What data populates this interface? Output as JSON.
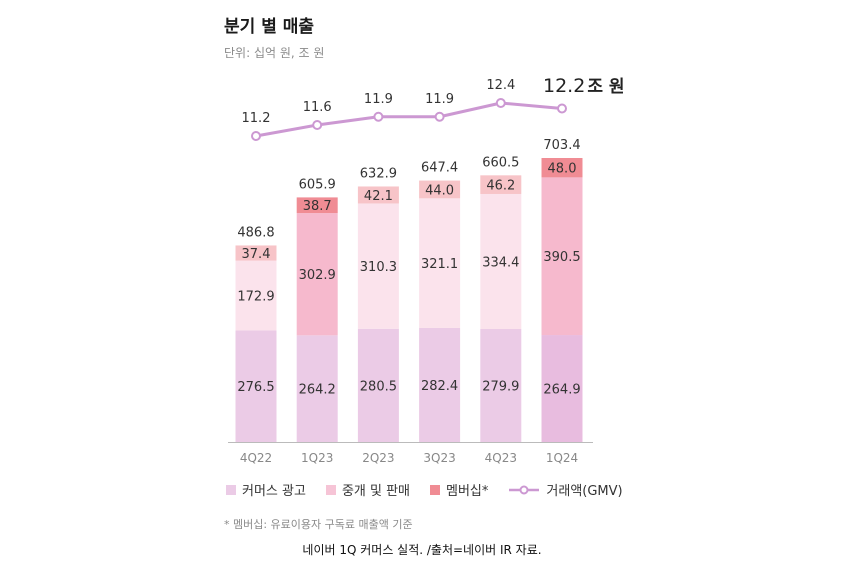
{
  "title": "분기 별 매출",
  "unit": "단위: 십억 원, 조 원",
  "gmv_highlight": {
    "value": "12.2",
    "unit": "조 원"
  },
  "legend": {
    "commerce_ad": "커머스 광고",
    "brokerage": "중개 및 판매",
    "membership": "멤버십*",
    "gmv": "거래액(GMV)"
  },
  "footnote": "* 멤버십: 유료이용자 구독료 매출액 기준",
  "caption": "네이버 1Q 커머스 실적. /출처=네이버 IR 자료.",
  "colors": {
    "commerce_ad": "#ebcbe6",
    "commerce_ad_last": "#e8bcdf",
    "brokerage": "#fbe3ec",
    "brokerage_highlight": "#f6b9cd",
    "membership": "#f7c4c8",
    "membership_highlight": "#f08c94",
    "gmv_line": "#cc98d2",
    "axis": "#bbbbbb"
  },
  "chart_data": {
    "type": "bar",
    "stacked": true,
    "categories": [
      "4Q22",
      "1Q23",
      "2Q23",
      "3Q23",
      "4Q23",
      "1Q24"
    ],
    "series": [
      {
        "name": "커머스 광고",
        "values": [
          276.5,
          264.2,
          280.5,
          282.4,
          279.9,
          264.9
        ]
      },
      {
        "name": "중개 및 판매",
        "values": [
          172.9,
          302.9,
          310.3,
          321.1,
          334.4,
          390.5
        ]
      },
      {
        "name": "멤버십*",
        "values": [
          37.4,
          38.7,
          42.1,
          44.0,
          46.2,
          48.0
        ]
      }
    ],
    "totals": [
      486.8,
      605.9,
      632.9,
      647.4,
      660.5,
      703.4
    ],
    "line_series": {
      "name": "거래액(GMV)",
      "unit": "조 원",
      "values": [
        11.2,
        11.6,
        11.9,
        11.9,
        12.4,
        12.2
      ]
    },
    "labels": {
      "commerce_ad": [
        "276.5",
        "264.2",
        "280.5",
        "282.4",
        "279.9",
        "264.9"
      ],
      "brokerage": [
        "172.9",
        "302.9",
        "310.3",
        "321.1",
        "334.4",
        "390.5"
      ],
      "membership": [
        "37.4",
        "38.7",
        "42.1",
        "44.0",
        "46.2",
        "48.0"
      ],
      "totals": [
        "486.8",
        "605.9",
        "632.9",
        "647.4",
        "660.5",
        "703.4"
      ],
      "gmv": [
        "11.2",
        "11.6",
        "11.9",
        "11.9",
        "12.4",
        ""
      ]
    },
    "highlighted_quarters": [
      "1Q23",
      "1Q24"
    ],
    "ylim": [
      0,
      703.4
    ],
    "title": "분기 별 매출",
    "xlabel": "",
    "ylabel": ""
  }
}
